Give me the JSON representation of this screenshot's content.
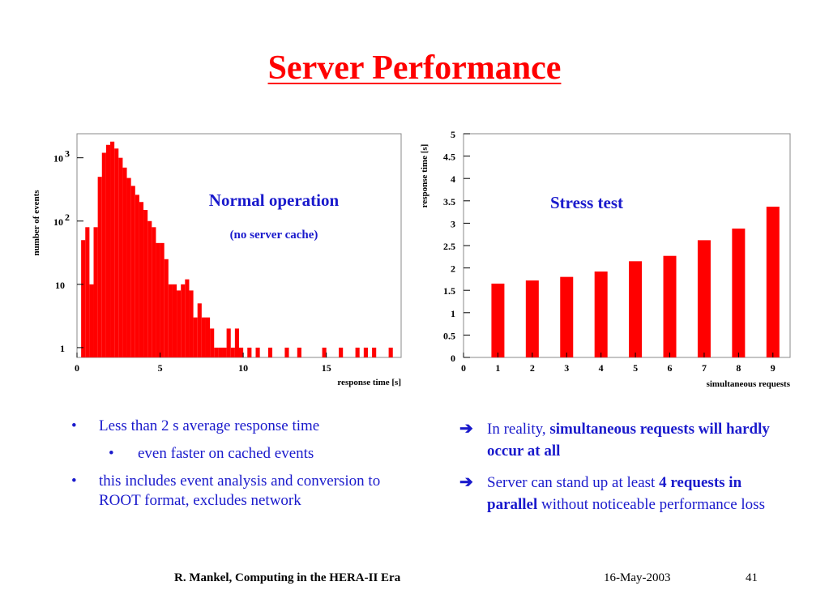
{
  "slide": {
    "title": "Server Performance",
    "footer_author": "R. Mankel, Computing in the HERA-II Era",
    "footer_date": "16-May-2003",
    "footer_page": "41"
  },
  "bullets": [
    {
      "text": "Less than 2 s average response time",
      "level": 1
    },
    {
      "text": "even faster on cached events",
      "level": 2
    },
    {
      "text": "this includes event analysis and conversion to ROOT format, excludes network",
      "level": 1
    }
  ],
  "notes": [
    {
      "prefix": "In reality, ",
      "bold": "simultaneous requests will hardly occur at all",
      "suffix": ""
    },
    {
      "prefix": "Server can stand up at least ",
      "bold": "4 requests in parallel",
      "suffix": " without noticeable performance loss"
    }
  ],
  "colors": {
    "title": "#ff0000",
    "bars": "#ff0000",
    "text": "#1a1acc"
  },
  "chart_data": [
    {
      "type": "bar",
      "subtype": "histogram",
      "title": "Normal operation",
      "subtitle": "(no server cache)",
      "xlabel": "response time [s]",
      "ylabel": "number of events",
      "xlim": [
        0,
        19.5
      ],
      "yscale": "log",
      "ylim": [
        0.7,
        2400
      ],
      "xticks": [
        "0",
        "5",
        "10",
        "15"
      ],
      "yticks": [
        {
          "value": 1,
          "label": "1"
        },
        {
          "value": 10,
          "label": "10"
        },
        {
          "value": 100,
          "label": "10",
          "exp": "2"
        },
        {
          "value": 1000,
          "label": "10",
          "exp": "3"
        }
      ],
      "bin_width": 0.25,
      "x": [
        0.25,
        0.5,
        0.75,
        1.0,
        1.25,
        1.5,
        1.75,
        2.0,
        2.25,
        2.5,
        2.75,
        3.0,
        3.25,
        3.5,
        3.75,
        4.0,
        4.25,
        4.5,
        4.75,
        5.0,
        5.25,
        5.5,
        5.75,
        6.0,
        6.25,
        6.5,
        6.75,
        7.0,
        7.25,
        7.5,
        7.75,
        8.0,
        8.25,
        8.5,
        8.75,
        9.0,
        9.25,
        9.5,
        9.75,
        10.25,
        10.75,
        11.5,
        12.5,
        13.25,
        14.75,
        15.75,
        16.75,
        17.25,
        17.75,
        18.75
      ],
      "values": [
        50,
        80,
        10,
        80,
        500,
        1200,
        1600,
        1800,
        1400,
        1000,
        700,
        480,
        360,
        260,
        200,
        150,
        100,
        80,
        45,
        45,
        25,
        10,
        10,
        8,
        10,
        12,
        8,
        3,
        5,
        3,
        3,
        2,
        1,
        1,
        1,
        2,
        1,
        2,
        1,
        1,
        1,
        1,
        1,
        1,
        1,
        1,
        1,
        1,
        1,
        1
      ]
    },
    {
      "type": "bar",
      "title": "Stress test",
      "xlabel": "simultaneous requests",
      "ylabel": "response time [s]",
      "xlim": [
        0,
        9.5
      ],
      "ylim": [
        0,
        5
      ],
      "xticks": [
        "0",
        "1",
        "2",
        "3",
        "4",
        "5",
        "6",
        "7",
        "8",
        "9"
      ],
      "yticks": [
        "0",
        "0.5",
        "1",
        "1.5",
        "2",
        "2.5",
        "3",
        "3.5",
        "4",
        "4.5",
        "5"
      ],
      "categories": [
        1,
        2,
        3,
        4,
        5,
        6,
        7,
        8,
        9
      ],
      "values": [
        1.65,
        1.72,
        1.8,
        1.92,
        2.15,
        2.27,
        2.62,
        2.88,
        3.37
      ]
    }
  ]
}
